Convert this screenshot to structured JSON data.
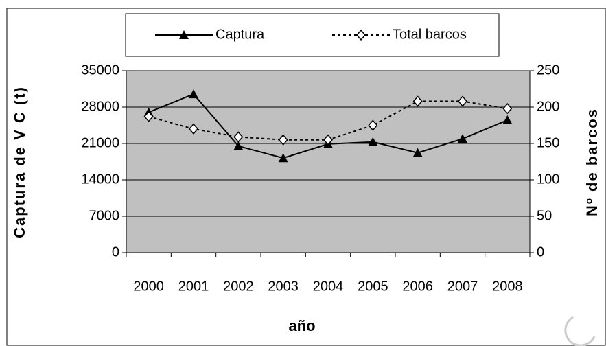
{
  "chart_data": {
    "type": "line",
    "xlabel": "año",
    "ylabel": "Captura de V C (t)",
    "y2label": "Nº de barcos",
    "categories": [
      "2000",
      "2001",
      "2002",
      "2003",
      "2004",
      "2005",
      "2006",
      "2007",
      "2008"
    ],
    "series": [
      {
        "name": "Captura",
        "color": "#000000",
        "marker": "triangle",
        "dash": false,
        "values": [
          27000,
          30500,
          20500,
          18200,
          20900,
          21300,
          19200,
          21900,
          25500
        ]
      },
      {
        "name": "Total barcos",
        "color": "#000000",
        "marker": "diamond",
        "dash": true,
        "axis": "y2",
        "values": [
          187,
          170,
          159,
          155,
          155,
          175,
          208,
          208,
          198
        ]
      }
    ],
    "ylim": [
      0,
      35000
    ],
    "yticks": [
      0,
      7000,
      14000,
      21000,
      28000,
      35000
    ],
    "y2lim": [
      0,
      250
    ],
    "y2ticks": [
      0,
      50,
      100,
      150,
      200,
      250
    ],
    "grid": true,
    "plot_background": "#c0c0c0",
    "legend": "top"
  }
}
